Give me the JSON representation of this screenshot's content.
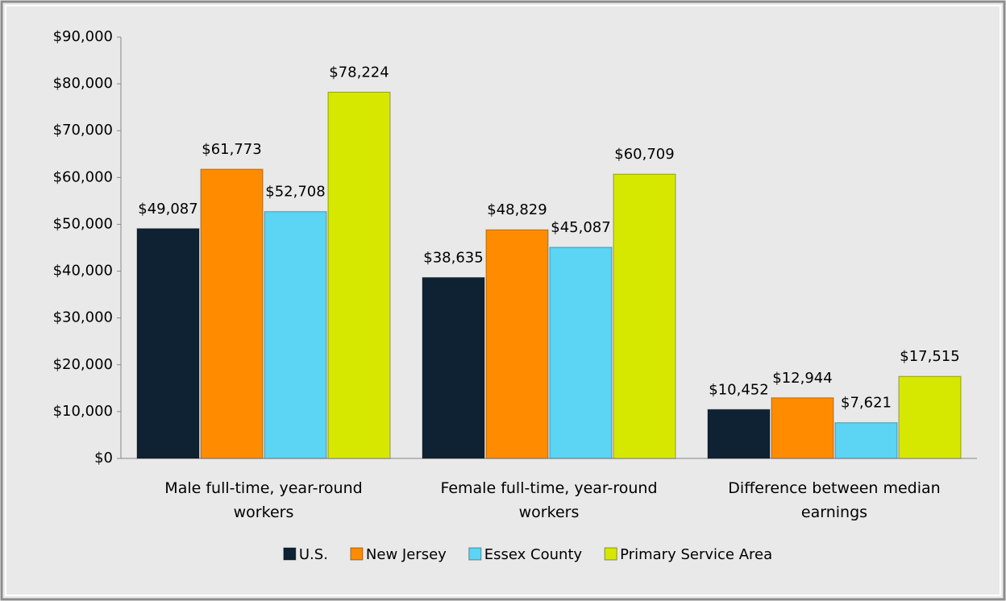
{
  "chart_data": {
    "type": "bar",
    "categories": [
      "Male full-time, year-round workers",
      "Female full-time, year-round workers",
      "Difference between median earnings"
    ],
    "series": [
      {
        "name": "U.S.",
        "color": "#0f2233",
        "values": [
          49087,
          38635,
          10452
        ],
        "value_labels": [
          "$49,087",
          "$38,635",
          "$10,452"
        ]
      },
      {
        "name": "New Jersey",
        "color": "#ff8c00",
        "values": [
          61773,
          48829,
          12944
        ],
        "value_labels": [
          "$61,773",
          "$48,829",
          "$12,944"
        ]
      },
      {
        "name": "Essex County",
        "color": "#5cd4f4",
        "values": [
          52708,
          45087,
          7621
        ],
        "value_labels": [
          "$52,708",
          "$45,087",
          "$7,621"
        ]
      },
      {
        "name": "Primary Service Area",
        "color": "#d6e800",
        "values": [
          78224,
          60709,
          17515
        ],
        "value_labels": [
          "$78,224",
          "$60,709",
          "$17,515"
        ]
      }
    ],
    "ylim": [
      0,
      90000
    ],
    "yticks": [
      {
        "value": 0,
        "label": "$0"
      },
      {
        "value": 10000,
        "label": "$10,000"
      },
      {
        "value": 20000,
        "label": "$20,000"
      },
      {
        "value": 30000,
        "label": "$30,000"
      },
      {
        "value": 40000,
        "label": "$40,000"
      },
      {
        "value": 50000,
        "label": "$50,000"
      },
      {
        "value": 60000,
        "label": "$60,000"
      },
      {
        "value": 70000,
        "label": "$70,000"
      },
      {
        "value": 80000,
        "label": "$80,000"
      },
      {
        "value": 90000,
        "label": "$90,000"
      }
    ],
    "legend": "bottom"
  }
}
